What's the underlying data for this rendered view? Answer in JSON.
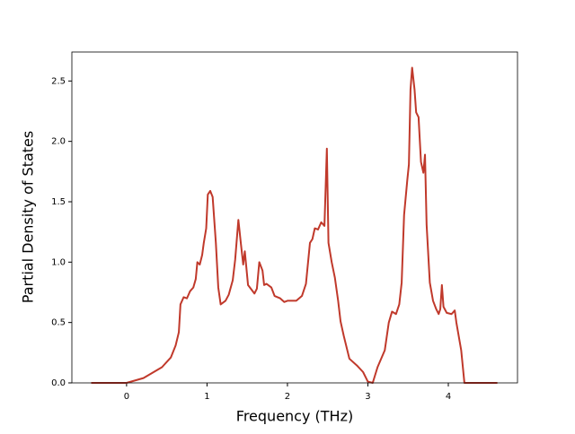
{
  "chart_data": {
    "type": "line",
    "xlabel": "Frequency (THz)",
    "ylabel": "Partial Density of States",
    "xlim": [
      -0.68,
      4.86
    ],
    "ylim": [
      0,
      2.74
    ],
    "xticks": [
      0,
      1,
      2,
      3,
      4
    ],
    "yticks": [
      {
        "value": 0,
        "label": "0.0"
      },
      0.5,
      {
        "value": 1,
        "label": "1.0"
      },
      1.5,
      {
        "value": 2,
        "label": "2.0"
      },
      2.5
    ],
    "color": "#c0392b",
    "x": [
      -0.44,
      0,
      0.21,
      0.44,
      0.55,
      0.61,
      0.65,
      0.67,
      0.71,
      0.75,
      0.79,
      0.83,
      0.86,
      0.88,
      0.91,
      0.94,
      0.96,
      0.99,
      1.01,
      1.04,
      1.07,
      1.11,
      1.14,
      1.17,
      1.23,
      1.27,
      1.32,
      1.35,
      1.39,
      1.42,
      1.45,
      1.47,
      1.51,
      1.59,
      1.62,
      1.65,
      1.69,
      1.71,
      1.74,
      1.8,
      1.84,
      1.91,
      1.96,
      2.0,
      2.11,
      2.18,
      2.23,
      2.28,
      2.31,
      2.34,
      2.38,
      2.42,
      2.46,
      2.49,
      2.51,
      2.55,
      2.59,
      2.63,
      2.66,
      2.7,
      2.77,
      2.87,
      2.94,
      3.0,
      3.06,
      3.12,
      3.21,
      3.26,
      3.3,
      3.35,
      3.39,
      3.42,
      3.45,
      3.49,
      3.51,
      3.53,
      3.55,
      3.58,
      3.6,
      3.63,
      3.66,
      3.69,
      3.71,
      3.73,
      3.77,
      3.81,
      3.85,
      3.88,
      3.9,
      3.92,
      3.94,
      3.98,
      4.04,
      4.08,
      4.1,
      4.16,
      4.2,
      4.61
    ],
    "values": [
      0,
      0,
      0.04,
      0.13,
      0.21,
      0.31,
      0.42,
      0.65,
      0.71,
      0.7,
      0.76,
      0.79,
      0.86,
      1.0,
      0.98,
      1.06,
      1.16,
      1.28,
      1.56,
      1.59,
      1.54,
      1.16,
      0.79,
      0.65,
      0.68,
      0.73,
      0.85,
      1.02,
      1.35,
      1.16,
      0.98,
      1.09,
      0.81,
      0.74,
      0.78,
      1.0,
      0.93,
      0.81,
      0.82,
      0.79,
      0.72,
      0.7,
      0.67,
      0.68,
      0.68,
      0.72,
      0.82,
      1.16,
      1.19,
      1.28,
      1.27,
      1.33,
      1.3,
      1.94,
      1.16,
      1.0,
      0.87,
      0.68,
      0.51,
      0.39,
      0.2,
      0.14,
      0.09,
      0.01,
      0,
      0.13,
      0.27,
      0.5,
      0.59,
      0.57,
      0.65,
      0.83,
      1.39,
      1.68,
      1.81,
      2.43,
      2.61,
      2.43,
      2.24,
      2.2,
      1.83,
      1.74,
      1.89,
      1.31,
      0.83,
      0.68,
      0.61,
      0.57,
      0.61,
      0.81,
      0.63,
      0.58,
      0.57,
      0.6,
      0.5,
      0.27,
      0,
      0
    ]
  }
}
